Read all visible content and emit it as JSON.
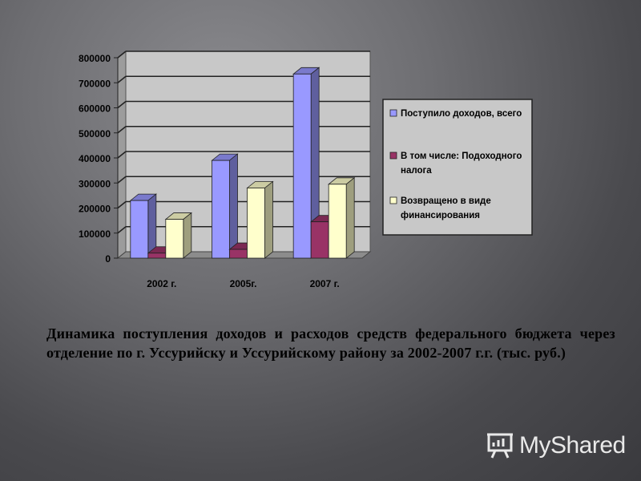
{
  "chart_data": {
    "type": "bar",
    "categories": [
      "2002 г.",
      "2005г.",
      "2007 г."
    ],
    "series": [
      {
        "name": "Поступило доходов, всего",
        "values": [
          230000,
          390000,
          735000
        ],
        "color": "#9999ff"
      },
      {
        "name": "В том числе: Подоходного налога",
        "values": [
          20000,
          35000,
          145000
        ],
        "color": "#993366"
      },
      {
        "name": "Возвращено в виде финансирования",
        "values": [
          155000,
          280000,
          295000
        ],
        "color": "#ffffcc"
      }
    ],
    "ylim": [
      0,
      800000
    ],
    "yticks": [
      "800000",
      "700000",
      "600000",
      "500000",
      "400000",
      "300000",
      "200000",
      "100000",
      "0"
    ],
    "legend_position": "right",
    "grid": true
  },
  "legend_lines": [
    [
      "Поступило доходов, всего"
    ],
    [
      "В том числе: Подоходного",
      "налога"
    ],
    [
      "Возвращено в виде",
      "финансирования"
    ]
  ],
  "caption": "Динамика поступления доходов и расходов средств федерального бюджета через отделение по г. Уссурийску и Уссурийскому району за 2002-2007 г.г. (тыс. руб.)",
  "logo": {
    "text": "MyShared",
    "icon": "presentation-board-icon"
  }
}
